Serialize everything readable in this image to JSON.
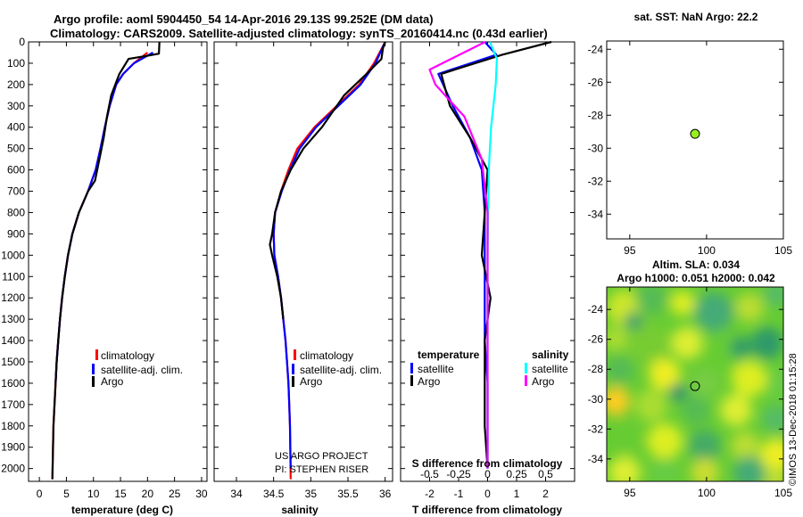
{
  "header": {
    "line1": "Argo profile: aoml 5904450_54 14-Apr-2016 29.13S 99.252E (DM data)",
    "line2": "Climatology: CARS2009. Satellite-adjusted climatology: synTS_20160414.nc (0.43d earlier)"
  },
  "credit": {
    "project": "US ARGO PROJECT",
    "pi": "PI: STEPHEN RISER",
    "stamp": "©IMOS 13-Dec-2018 01:15:28"
  },
  "colors": {
    "climatology": "#ff0000",
    "satellite": "#0000ff",
    "argo": "#000000",
    "satellite_s": "#00ffff",
    "argo_s": "#ff00ff",
    "position_marker": "#99ee22"
  },
  "chart_data": [
    {
      "id": "temperature",
      "type": "line",
      "xlabel": "temperature (deg C)",
      "ylabel": "",
      "xlim": [
        -2,
        31
      ],
      "ylim": [
        2060,
        0
      ],
      "xticks": [
        0,
        5,
        10,
        15,
        20,
        25,
        30
      ],
      "yticks": [
        0,
        100,
        200,
        300,
        400,
        500,
        600,
        700,
        800,
        900,
        1000,
        1100,
        1200,
        1300,
        1400,
        1500,
        1600,
        1700,
        1800,
        1900,
        2000
      ],
      "legend": [
        "climatology",
        "satellite-adj. clim.",
        "Argo"
      ],
      "series": [
        {
          "name": "climatology",
          "x": [
            20,
            17.5,
            15.5,
            14.2,
            13,
            12.1,
            11.3,
            10.4,
            9,
            7.3,
            6.1,
            5.3,
            4.7,
            4.2,
            3.8,
            3.5,
            3.2,
            3,
            2.8,
            2.6,
            2.4
          ],
          "y": [
            50,
            100,
            150,
            200,
            300,
            400,
            500,
            600,
            700,
            800,
            900,
            1000,
            1100,
            1200,
            1300,
            1400,
            1500,
            1600,
            1700,
            1800,
            2050
          ]
        },
        {
          "name": "satellite-adj. clim.",
          "x": [
            21,
            17.5,
            15.5,
            14.2,
            13,
            12.1,
            11.3,
            10.4,
            9,
            7.3,
            6.1,
            5.3,
            4.7,
            4.2,
            3.8,
            3.5,
            3.2,
            3
          ],
          "y": [
            50,
            100,
            150,
            200,
            300,
            400,
            500,
            600,
            700,
            800,
            900,
            1000,
            1100,
            1200,
            1300,
            1400,
            1500,
            1600
          ]
        },
        {
          "name": "Argo",
          "x": [
            22.2,
            22.1,
            20,
            16.5,
            14.8,
            13.3,
            12.5,
            11.9,
            11.1,
            10.3,
            9,
            7.3,
            6.1,
            5.3,
            4.7,
            4.2,
            3.8,
            3.5,
            3.2,
            3,
            2.8,
            2.6,
            2.4
          ],
          "y": [
            0,
            55,
            65,
            80,
            150,
            250,
            350,
            450,
            550,
            650,
            700,
            800,
            900,
            1000,
            1100,
            1200,
            1300,
            1400,
            1500,
            1600,
            1700,
            1800,
            2050
          ]
        }
      ]
    },
    {
      "id": "salinity",
      "type": "line",
      "xlabel": "salinity",
      "ylabel": "",
      "xlim": [
        33.7,
        36.1
      ],
      "ylim": [
        2060,
        0
      ],
      "xticks": [
        34,
        34.5,
        35,
        35.5,
        36
      ],
      "xtick_labels": [
        "34",
        "34.5",
        "35",
        "35.5",
        "36"
      ],
      "legend": [
        "climatology",
        "satellite-adj. clim.",
        "Argo"
      ],
      "series": [
        {
          "name": "climatology",
          "x": [
            36.0,
            35.85,
            35.65,
            35.35,
            35.05,
            34.82,
            34.7,
            34.6,
            34.52,
            34.5,
            34.51,
            34.56,
            34.6,
            34.63,
            34.66,
            34.68,
            34.7,
            34.71,
            34.72,
            34.73
          ],
          "y": [
            0,
            100,
            200,
            300,
            400,
            500,
            600,
            700,
            800,
            900,
            1000,
            1100,
            1200,
            1300,
            1400,
            1500,
            1600,
            1700,
            1800,
            2050
          ]
        },
        {
          "name": "satellite-adj. clim.",
          "x": [
            36.0,
            35.87,
            35.67,
            35.37,
            35.07,
            34.85,
            34.72,
            34.61,
            34.52,
            34.5,
            34.51,
            34.56,
            34.6,
            34.63,
            34.66,
            34.68,
            34.7,
            34.71,
            34.72,
            34.73
          ],
          "y": [
            0,
            100,
            200,
            300,
            400,
            500,
            600,
            700,
            800,
            900,
            1000,
            1100,
            1200,
            1300,
            1400,
            1500,
            1600,
            1700,
            1800,
            2000
          ]
        },
        {
          "name": "Argo",
          "x": [
            36.0,
            35.97,
            35.95,
            35.75,
            35.45,
            35.15,
            34.9,
            34.73,
            34.6,
            34.52,
            34.48,
            34.45,
            34.48,
            34.55,
            34.6,
            34.63
          ],
          "y": [
            0,
            30,
            80,
            150,
            250,
            400,
            500,
            600,
            700,
            800,
            900,
            950,
            1000,
            1100,
            1200,
            1300
          ]
        }
      ]
    },
    {
      "id": "difference",
      "type": "line",
      "xlabel": "T difference from climatology",
      "xlabel_top": "S difference from climatology",
      "xlim": [
        -3,
        3
      ],
      "ylim": [
        2060,
        0
      ],
      "xticks": [
        -2,
        -1,
        0,
        1,
        2
      ],
      "xtick_labels": [
        "-2",
        "-1",
        "0",
        "1",
        "2"
      ],
      "s_ticks": [
        -0.5,
        -0.25,
        0,
        0.25,
        0.5
      ],
      "s_tick_labels": [
        "-0.5",
        "-0.25",
        "0",
        "0.25",
        "0.5"
      ],
      "legend": {
        "t_heading": "temperature",
        "t_satellite": "satellite",
        "t_argo": "Argo",
        "s_heading": "salinity",
        "s_satellite": "satellite",
        "s_argo": "Argo"
      },
      "series": [
        {
          "name": "T satellite",
          "x": [
            -0.1,
            0.3,
            -1.7,
            -1.2,
            -0.6,
            -0.2,
            -0.1,
            -0.1,
            -0.1,
            -0.1,
            0,
            0
          ],
          "y": [
            0,
            60,
            150,
            300,
            450,
            600,
            800,
            1000,
            1200,
            1400,
            1600,
            2000
          ]
        },
        {
          "name": "T Argo",
          "x": [
            2.2,
            0.5,
            -1.6,
            -1.3,
            -0.6,
            0,
            -0.1,
            -0.2,
            0.1,
            -0.1,
            -0.1,
            -0.1,
            0
          ],
          "y": [
            0,
            60,
            150,
            300,
            450,
            600,
            800,
            1000,
            1200,
            1400,
            1600,
            1800,
            2000
          ]
        },
        {
          "name": "S satellite",
          "x": [
            0.02,
            0.08,
            0.07,
            0.03,
            0.01,
            0,
            0,
            0
          ],
          "y": [
            0,
            80,
            200,
            400,
            600,
            1000,
            1500,
            2000
          ]
        },
        {
          "name": "S Argo",
          "x": [
            -0.02,
            -0.5,
            -0.45,
            -0.2,
            -0.05,
            0,
            0,
            0
          ],
          "y": [
            0,
            130,
            200,
            350,
            550,
            800,
            1500,
            2000
          ]
        }
      ]
    },
    {
      "id": "sst_map",
      "type": "scatter",
      "title": "sat. SST: NaN Argo: 22.2",
      "xlim": [
        93.5,
        105
      ],
      "ylim": [
        -35.5,
        -23.5
      ],
      "xticks": [
        95,
        100,
        105
      ],
      "yticks": [
        -24,
        -26,
        -28,
        -30,
        -32,
        -34
      ],
      "points": [
        {
          "x": 99.25,
          "y": -29.13
        }
      ]
    },
    {
      "id": "sla_map",
      "type": "heatmap",
      "title": "Altim. SLA: 0.034",
      "subtitle": "Argo h1000: 0.051 h2000: 0.042",
      "xlim": [
        93.5,
        105
      ],
      "ylim": [
        -35.5,
        -22.5
      ],
      "xticks": [
        95,
        100,
        105
      ],
      "yticks": [
        -24,
        -26,
        -28,
        -30,
        -32,
        -34
      ],
      "points": [
        {
          "x": 99.25,
          "y": -29.13
        }
      ]
    }
  ]
}
